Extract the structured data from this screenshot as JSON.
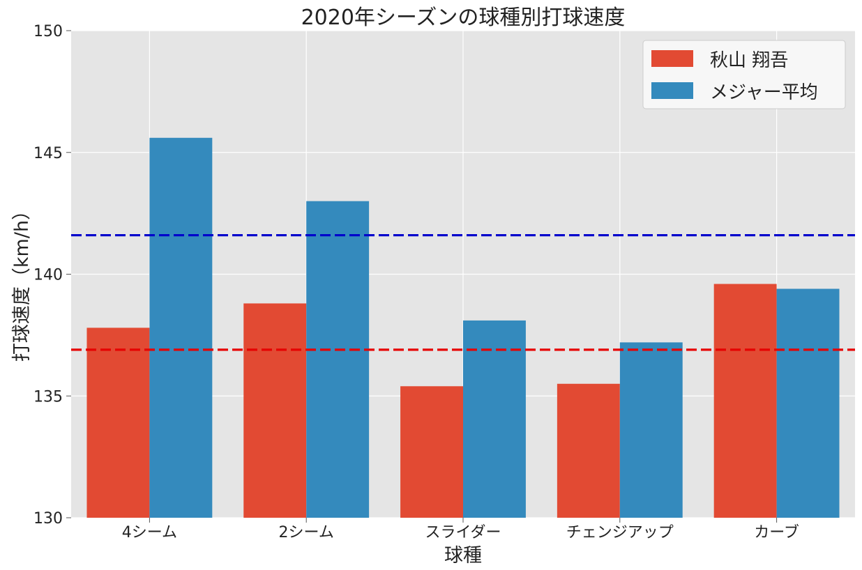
{
  "chart_data": {
    "type": "bar",
    "title": "2020年シーズンの球種別打球速度",
    "xlabel": "球種",
    "ylabel": "打球速度（km/h）",
    "categories": [
      "4シーム",
      "2シーム",
      "スライダー",
      "チェンジアップ",
      "カーブ"
    ],
    "series": [
      {
        "name": "秋山 翔吾",
        "color": "#e24a33",
        "values": [
          137.8,
          138.8,
          135.4,
          135.5,
          139.6
        ]
      },
      {
        "name": "メジャー平均",
        "color": "#348abd",
        "values": [
          145.6,
          143.0,
          138.1,
          137.2,
          139.4
        ]
      }
    ],
    "reference_lines": [
      {
        "value": 141.6,
        "color": "#0000cc",
        "style": "dashed"
      },
      {
        "value": 136.9,
        "color": "#e60000",
        "style": "dashed"
      }
    ],
    "ylim": [
      130,
      150
    ],
    "yticks": [
      130,
      135,
      140,
      145,
      150
    ],
    "grid": true,
    "legend_position": "top-right",
    "background": "#e5e5e5"
  }
}
